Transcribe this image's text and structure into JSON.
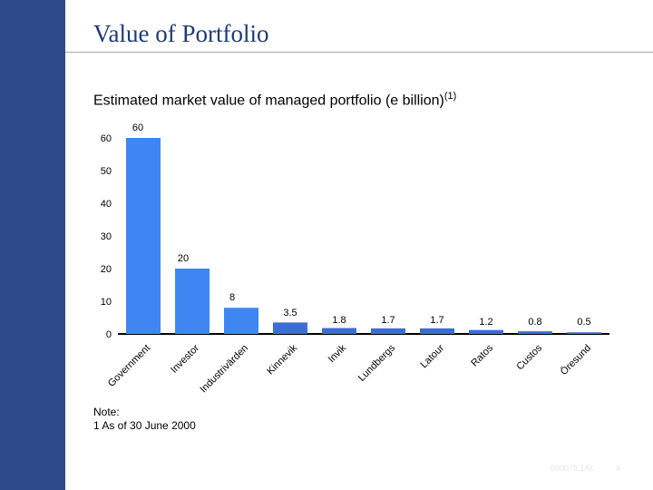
{
  "title": "Value of Portfolio",
  "subtitle": "Estimated market value of managed portfolio (e billion)",
  "subtitle_footnote": "(1)",
  "note_heading": "Note:",
  "note_line": "1   As of 30 June 2000",
  "footer_code": "000078 1AL",
  "page_number": "4",
  "colors": {
    "sidebar": "#2d4b8c",
    "bar": "#3f86f2",
    "bar_small": "#3d6cd4"
  },
  "chart_data": {
    "type": "bar",
    "categories": [
      "Government",
      "Investor",
      "Industrivärden",
      "Kinnevik",
      "Invik",
      "Lundbergs",
      "Latour",
      "Ratos",
      "Custos",
      "Öresund"
    ],
    "values": [
      60,
      20,
      8,
      3.5,
      1.8,
      1.7,
      1.7,
      1.2,
      0.8,
      0.5
    ],
    "data_labels": [
      "60",
      "20",
      "8",
      "3.5",
      "1.8",
      "1.7",
      "1.7",
      "1.2",
      "0.8",
      "0.5"
    ],
    "yticks": [
      "0",
      "10",
      "20",
      "30",
      "40",
      "50",
      "60"
    ],
    "ylim": [
      0,
      60
    ],
    "grid": false,
    "legend": "none"
  }
}
